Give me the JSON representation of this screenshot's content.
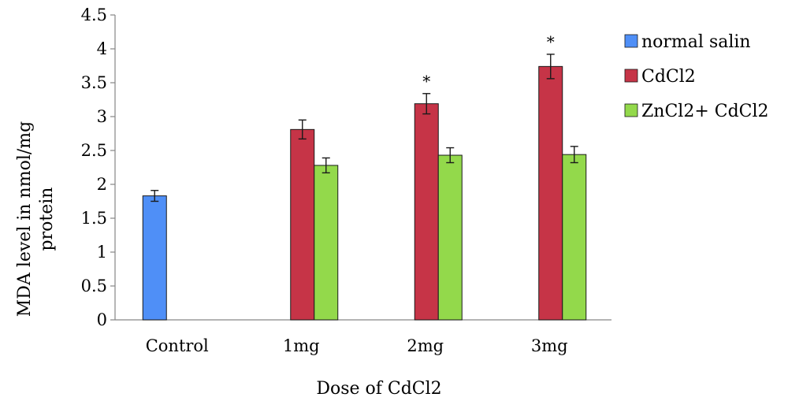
{
  "chart_data": {
    "type": "bar",
    "title": "",
    "xlabel": "Dose of CdCl2",
    "ylabel_lines": [
      "MDA level in nmol/mg",
      "protein"
    ],
    "ylim": [
      0,
      4.5
    ],
    "yticks": [
      "0",
      "0.5",
      "1",
      "1.5",
      "2",
      "2.5",
      "3",
      "3.5",
      "4",
      "4.5"
    ],
    "categories": [
      "Control",
      "1mg",
      "2mg",
      "3mg"
    ],
    "grid": false,
    "legend_position": "right",
    "series": [
      {
        "name": "normal salin",
        "color": "#4f8ff7",
        "values": [
          1.83,
          null,
          null,
          null
        ],
        "errors": [
          0.08,
          null,
          null,
          null
        ],
        "marks": [
          "",
          "",
          "",
          ""
        ]
      },
      {
        "name": "CdCl2",
        "color": "#c63447",
        "values": [
          null,
          2.81,
          3.19,
          3.74
        ],
        "errors": [
          null,
          0.14,
          0.15,
          0.18
        ],
        "marks": [
          "",
          "",
          "*",
          "*"
        ]
      },
      {
        "name": "ZnCl2+ CdCl2",
        "color": "#93d94b",
        "values": [
          null,
          2.28,
          2.43,
          2.44
        ],
        "errors": [
          null,
          0.11,
          0.11,
          0.12
        ],
        "marks": [
          "",
          "",
          "",
          ""
        ]
      }
    ]
  }
}
